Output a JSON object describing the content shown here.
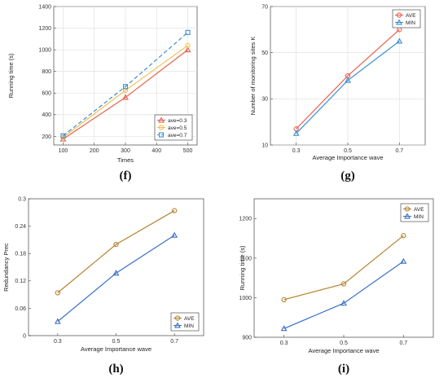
{
  "chart_data": [
    {
      "id": "f",
      "type": "line",
      "caption": "(f)",
      "xlabel": "Times",
      "ylabel": "Running time (s)",
      "x": [
        100,
        300,
        500
      ],
      "xticks": [
        100,
        200,
        300,
        400,
        500
      ],
      "yticks": [
        200,
        400,
        600,
        800,
        1000,
        1200,
        1400
      ],
      "xlim": [
        70,
        530
      ],
      "ylim": [
        120,
        1400
      ],
      "legend_position": "bottom-right",
      "grid": true,
      "series": [
        {
          "name": "ave=0.3",
          "values": [
            175,
            560,
            1000
          ],
          "color": "#e8604c",
          "marker": "triangle",
          "dash": ""
        },
        {
          "name": "ave=0.5",
          "values": [
            190,
            625,
            1040
          ],
          "color": "#f2c14e",
          "marker": "circle",
          "dash": ""
        },
        {
          "name": "ave=0.7",
          "values": [
            205,
            660,
            1160
          ],
          "color": "#3a8fd6",
          "marker": "square",
          "dash": "5,3"
        }
      ]
    },
    {
      "id": "g",
      "type": "line",
      "caption": "(g)",
      "xlabel": "Average Importance wave",
      "ylabel": "Number of monitoring sites K",
      "x": [
        0.3,
        0.5,
        0.7
      ],
      "xticks": [
        0.3,
        0.5,
        0.7
      ],
      "yticks": [
        10,
        30,
        50,
        70
      ],
      "xlim": [
        0.2,
        0.8
      ],
      "ylim": [
        10,
        70
      ],
      "legend_position": "top-left",
      "grid": true,
      "series": [
        {
          "name": "AVE",
          "values": [
            17,
            40,
            60
          ],
          "color": "#e8604c",
          "marker": "circle",
          "dash": ""
        },
        {
          "name": "MIN",
          "values": [
            15,
            38,
            55
          ],
          "color": "#3a8fd6",
          "marker": "triangle",
          "dash": ""
        }
      ]
    },
    {
      "id": "h",
      "type": "line",
      "caption": "(h)",
      "xlabel": "Average Importance wave",
      "ylabel": "Redundancy Prec",
      "x": [
        0.3,
        0.5,
        0.7
      ],
      "xticks": [
        0.3,
        0.5,
        0.7
      ],
      "yticks": [
        0,
        0.06,
        0.12,
        0.18,
        0.24,
        0.3
      ],
      "yticklabels": [
        "0",
        "0.06",
        "0.12",
        "0.18",
        "0.24",
        "0.3"
      ],
      "xlim": [
        0.2,
        0.8
      ],
      "ylim": [
        0,
        0.3
      ],
      "legend_position": "bottom-right",
      "grid": false,
      "series": [
        {
          "name": "AVE",
          "values": [
            0.094,
            0.2,
            0.274
          ],
          "color": "#b5832e",
          "marker": "circle",
          "dash": ""
        },
        {
          "name": "MIN",
          "values": [
            0.031,
            0.137,
            0.22
          ],
          "color": "#3a70c8",
          "marker": "triangle",
          "dash": ""
        }
      ]
    },
    {
      "id": "i",
      "type": "line",
      "caption": "(i)",
      "xlabel": "Average Importance wave",
      "ylabel": "Running time (s)",
      "x": [
        0.3,
        0.5,
        0.7
      ],
      "xticks": [
        0.3,
        0.5,
        0.7
      ],
      "yticks": [
        900,
        1000,
        1100,
        1200
      ],
      "xlim": [
        0.2,
        0.8
      ],
      "ylim": [
        900,
        1250
      ],
      "legend_position": "top-right",
      "grid": false,
      "series": [
        {
          "name": "AVE",
          "values": [
            995,
            1035,
            1157
          ],
          "color": "#b5832e",
          "marker": "circle",
          "dash": ""
        },
        {
          "name": "MIN",
          "values": [
            922,
            986,
            1092
          ],
          "color": "#3a70c8",
          "marker": "triangle",
          "dash": ""
        }
      ]
    }
  ]
}
